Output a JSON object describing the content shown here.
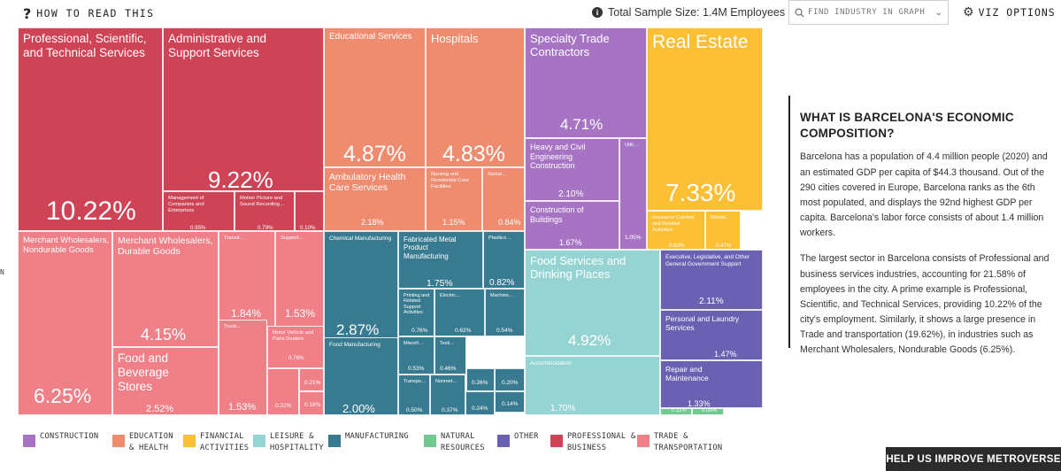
{
  "header": {
    "how_to_read": "HOW TO READ THIS",
    "help_glyph": "?",
    "sample_size": "Total Sample Size: 1.4M Employees",
    "info_glyph": "i",
    "search_placeholder": "FIND INDUSTRY IN GRAPH",
    "viz_options": "VIZ OPTIONS",
    "left_edge_text": "N"
  },
  "colors": {
    "professional": "#cf4356",
    "education": "#ef8b6e",
    "construction": "#a774c4",
    "financial": "#fbbf35",
    "manufacturing": "#387b90",
    "leisure": "#96d3d3",
    "other": "#6a61b2",
    "trade": "#ef8087",
    "natural": "#72c98f"
  },
  "treemap": {
    "cells": [
      {
        "id": "pro-sci-tech",
        "name": "Professional, Scientific, and Technical Services",
        "pct": "10.22%",
        "sector": "professional"
      },
      {
        "id": "admin-support",
        "name": "Administrative and Support Services",
        "pct": "9.22%",
        "sector": "professional"
      },
      {
        "id": "mgmt-companies",
        "name": "Management of Companies and Enterprises",
        "pct": "0.95%",
        "sector": "professional"
      },
      {
        "id": "motion-picture",
        "name": "Motion Picture and Sound Recording…",
        "pct": "0.79%",
        "sector": "professional"
      },
      {
        "id": "pro-small",
        "name": "",
        "pct": "0.10%",
        "sector": "professional"
      },
      {
        "id": "educational",
        "name": "Educational Services",
        "pct": "4.87%",
        "sector": "education"
      },
      {
        "id": "hospitals",
        "name": "Hospitals",
        "pct": "4.83%",
        "sector": "education"
      },
      {
        "id": "ambulatory",
        "name": "Ambulatory Health Care Services",
        "pct": "2.18%",
        "sector": "education"
      },
      {
        "id": "nursing",
        "name": "Nursing and Residential Care Facilities",
        "pct": "1.15%",
        "sector": "education"
      },
      {
        "id": "social",
        "name": "Social…",
        "pct": "0.84%",
        "sector": "education"
      },
      {
        "id": "specialty-trade",
        "name": "Specialty Trade Contractors",
        "pct": "4.71%",
        "sector": "construction"
      },
      {
        "id": "heavy-civil",
        "name": "Heavy and Civil Engineering Construction",
        "pct": "2.10%",
        "sector": "construction"
      },
      {
        "id": "utilities",
        "name": "Utili…",
        "pct": "1.05%",
        "sector": "construction"
      },
      {
        "id": "construction-buildings",
        "name": "Construction of Buildings",
        "pct": "1.67%",
        "sector": "construction"
      },
      {
        "id": "real-estate",
        "name": "Real Estate",
        "pct": "7.33%",
        "sector": "financial"
      },
      {
        "id": "insurance",
        "name": "Insurance Carriers and Related Activities",
        "pct": "0.83%",
        "sector": "financial"
      },
      {
        "id": "rental",
        "name": "Rental…",
        "pct": "0.47%",
        "sector": "financial"
      },
      {
        "id": "chemical",
        "name": "Chemical Manufacturing",
        "pct": "2.87%",
        "sector": "manufacturing"
      },
      {
        "id": "fabricated-metal",
        "name": "Fabricated Metal Product Manufacturing",
        "pct": "1.75%",
        "sector": "manufacturing"
      },
      {
        "id": "plastics",
        "name": "Plastics…",
        "pct": "0.82%",
        "sector": "manufacturing"
      },
      {
        "id": "printing",
        "name": "Printing and Related Support Activities",
        "pct": "0.76%",
        "sector": "manufacturing"
      },
      {
        "id": "electric",
        "name": "Electric…",
        "pct": "0.62%",
        "sector": "manufacturing"
      },
      {
        "id": "machinery",
        "name": "Machine…",
        "pct": "0.54%",
        "sector": "manufacturing"
      },
      {
        "id": "food-mfg",
        "name": "Food Manufacturing",
        "pct": "2.00%",
        "sector": "manufacturing"
      },
      {
        "id": "misc-mfg",
        "name": "Miscell…",
        "pct": "0.53%",
        "sector": "manufacturing"
      },
      {
        "id": "textile",
        "name": "Texti…",
        "pct": "0.46%",
        "sector": "manufacturing"
      },
      {
        "id": "mfg-a",
        "name": "",
        "pct": "0.26%",
        "sector": "manufacturing"
      },
      {
        "id": "mfg-b",
        "name": "",
        "pct": "0.20%",
        "sector": "manufacturing"
      },
      {
        "id": "mfg-c",
        "name": "",
        "pct": "0.14%",
        "sector": "manufacturing"
      },
      {
        "id": "transport-eq",
        "name": "Transpo…",
        "pct": "0.50%",
        "sector": "manufacturing"
      },
      {
        "id": "nonmetal",
        "name": "Nonmet…",
        "pct": "0.37%",
        "sector": "manufacturing"
      },
      {
        "id": "mfg-d",
        "name": "",
        "pct": "0.24%",
        "sector": "manufacturing"
      },
      {
        "id": "food-services",
        "name": "Food Services and Drinking Places",
        "pct": "4.92%",
        "sector": "leisure"
      },
      {
        "id": "accommodation",
        "name": "Accommodation",
        "pct": "1.70%",
        "sector": "leisure"
      },
      {
        "id": "executive",
        "name": "Executive, Legislative, and Other General Government Support",
        "pct": "2.11%",
        "sector": "other"
      },
      {
        "id": "personal-laundry",
        "name": "Personal and Laundry Services",
        "pct": "1.47%",
        "sector": "other"
      },
      {
        "id": "repair",
        "name": "Repair and Maintenance",
        "pct": "1.33%",
        "sector": "other"
      },
      {
        "id": "nat-a",
        "name": "",
        "pct": "0.11%",
        "sector": "natural"
      },
      {
        "id": "nat-b",
        "name": "",
        "pct": "0.09%",
        "sector": "natural"
      },
      {
        "id": "merchant-nondurable",
        "name": "Merchant Wholesalers, Nondurable Goods",
        "pct": "6.25%",
        "sector": "trade"
      },
      {
        "id": "merchant-durable",
        "name": "Merchant Wholesalers, Durable Goods",
        "pct": "4.15%",
        "sector": "trade"
      },
      {
        "id": "transit",
        "name": "Transit…",
        "pct": "1.84%",
        "sector": "trade"
      },
      {
        "id": "support-act",
        "name": "Support…",
        "pct": "1.53%",
        "sector": "trade"
      },
      {
        "id": "truck",
        "name": "Truck…",
        "pct": "1.53%",
        "sector": "trade"
      },
      {
        "id": "food-bev-stores",
        "name": "Food and Beverage Stores",
        "pct": "2.52%",
        "sector": "trade"
      },
      {
        "id": "motor-vehicle",
        "name": "Motor Vehicle and Parts Dealers",
        "pct": "0.76%",
        "sector": "trade"
      },
      {
        "id": "trade-a",
        "name": "",
        "pct": "0.22%",
        "sector": "trade"
      },
      {
        "id": "trade-b",
        "name": "",
        "pct": "0.21%",
        "sector": "trade"
      },
      {
        "id": "trade-c",
        "name": "",
        "pct": "0.18%",
        "sector": "trade"
      }
    ]
  },
  "info_panel": {
    "title": "WHAT IS BARCELONA'S ECONOMIC COMPOSITION?",
    "p1": "Barcelona has a population of 4.4 million people (2020) and an estimated GDP per capita of $44.3 thousand. Out of the 290 cities covered in Europe, Barcelona ranks as the 6th most populated, and displays the 92nd highest GDP per capita. Barcelona's labor force consists of about 1.4 million workers.",
    "p2": "The largest sector in Barcelona consists of Professional and business services industries, accounting for 21.58% of employees in the city. A prime example is Professional, Scientific, and Technical Services, providing 10.22% of the city's employment. Similarly, it shows a large presence in Trade and transportation (19.62%), in industries such as Merchant Wholesalers, Nondurable Goods  (6.25%)."
  },
  "legend": [
    {
      "label": "CONSTRUCTION",
      "sector": "construction"
    },
    {
      "label": "EDUCATION & HEALTH",
      "sector": "education"
    },
    {
      "label": "FINANCIAL ACTIVITIES",
      "sector": "financial"
    },
    {
      "label": "LEISURE & HOSPITALITY",
      "sector": "leisure"
    },
    {
      "label": "MANUFACTURING",
      "sector": "manufacturing"
    },
    {
      "label": "NATURAL RESOURCES",
      "sector": "natural"
    },
    {
      "label": "OTHER",
      "sector": "other"
    },
    {
      "label": "PROFESSIONAL & BUSINESS",
      "sector": "professional"
    },
    {
      "label": "TRADE & TRANSPORTATION",
      "sector": "trade"
    }
  ],
  "footer": {
    "improve": "HELP US IMPROVE METROVERSE"
  }
}
